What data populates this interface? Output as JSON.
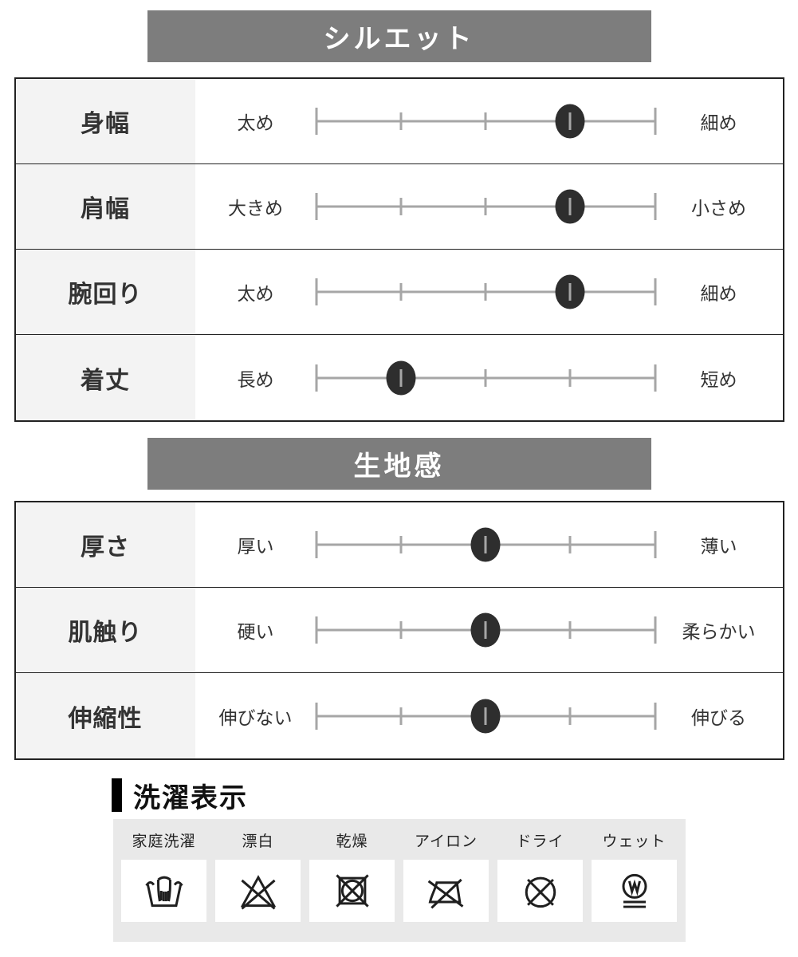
{
  "colors": {
    "header_bg": "#7d7d7d",
    "header_text": "#ffffff",
    "table_border": "#222222",
    "label_cell_bg": "#f3f3f3",
    "scale_line": "#a6a6a6",
    "dot": "#2e2e2e",
    "care_panel_bg": "#e9e9e9",
    "accent_bar": "#000000"
  },
  "sections": [
    {
      "title": "シルエット",
      "rows": [
        {
          "name": "身幅",
          "left": "太め",
          "right": "細め",
          "position": 4,
          "scale": 5
        },
        {
          "name": "肩幅",
          "left": "大きめ",
          "right": "小さめ",
          "position": 4,
          "scale": 5
        },
        {
          "name": "腕回り",
          "left": "太め",
          "right": "細め",
          "position": 4,
          "scale": 5
        },
        {
          "name": "着丈",
          "left": "長め",
          "right": "短め",
          "position": 2,
          "scale": 5
        }
      ]
    },
    {
      "title": "生地感",
      "rows": [
        {
          "name": "厚さ",
          "left": "厚い",
          "right": "薄い",
          "position": 3,
          "scale": 5
        },
        {
          "name": "肌触り",
          "left": "硬い",
          "right": "柔らかい",
          "position": 3,
          "scale": 5
        },
        {
          "name": "伸縮性",
          "left": "伸びない",
          "right": "伸びる",
          "position": 3,
          "scale": 5
        }
      ]
    }
  ],
  "care": {
    "title": "洗濯表示",
    "items": [
      {
        "label": "家庭洗濯",
        "icon": "hand-wash-icon"
      },
      {
        "label": "漂白",
        "icon": "do-not-bleach-icon"
      },
      {
        "label": "乾燥",
        "icon": "do-not-tumble-dry-icon"
      },
      {
        "label": "アイロン",
        "icon": "do-not-iron-icon"
      },
      {
        "label": "ドライ",
        "icon": "do-not-dry-clean-icon"
      },
      {
        "label": "ウェット",
        "icon": "wet-clean-gentle-icon"
      }
    ]
  }
}
